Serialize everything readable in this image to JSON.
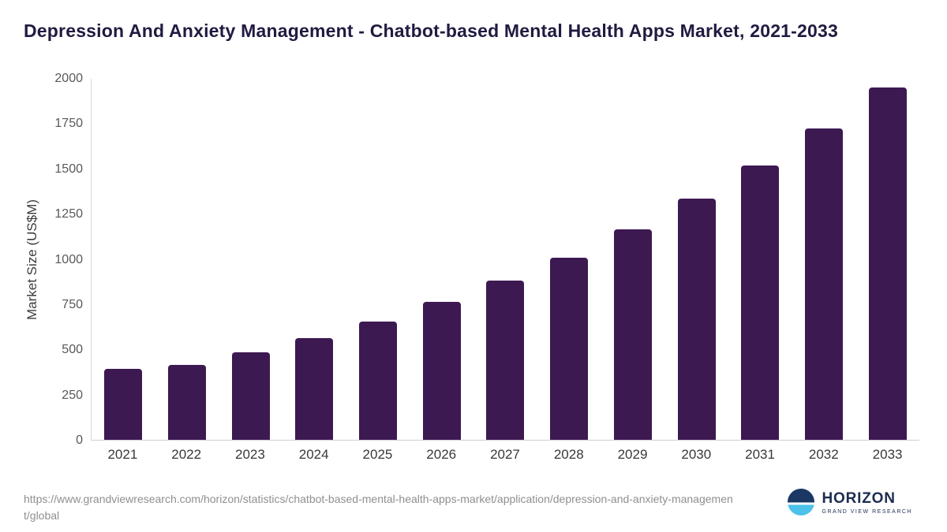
{
  "title": "Depression And Anxiety Management - Chatbot-based Mental Health Apps Market, 2021-2033",
  "source_url": "https://www.grandviewresearch.com/horizon/statistics/chatbot-based-mental-health-apps-market/application/depression-and-anxiety-management/global",
  "logo": {
    "name": "HORIZON",
    "subtitle": "GRAND VIEW RESEARCH"
  },
  "chart_data": {
    "type": "bar",
    "title": "Depression And Anxiety Management - Chatbot-based Mental Health Apps Market, 2021-2033",
    "categories": [
      "2021",
      "2022",
      "2023",
      "2024",
      "2025",
      "2026",
      "2027",
      "2028",
      "2029",
      "2030",
      "2031",
      "2032",
      "2033"
    ],
    "values": [
      395,
      415,
      485,
      565,
      655,
      765,
      880,
      1010,
      1165,
      1335,
      1520,
      1725,
      1950
    ],
    "xlabel": "",
    "ylabel": "Market Size (US$M)",
    "ylim": [
      0,
      2000
    ],
    "yticks": [
      0,
      250,
      500,
      750,
      1000,
      1250,
      1500,
      1750,
      2000
    ],
    "bar_color": "#3d1952",
    "grid": false,
    "legend": "none"
  }
}
